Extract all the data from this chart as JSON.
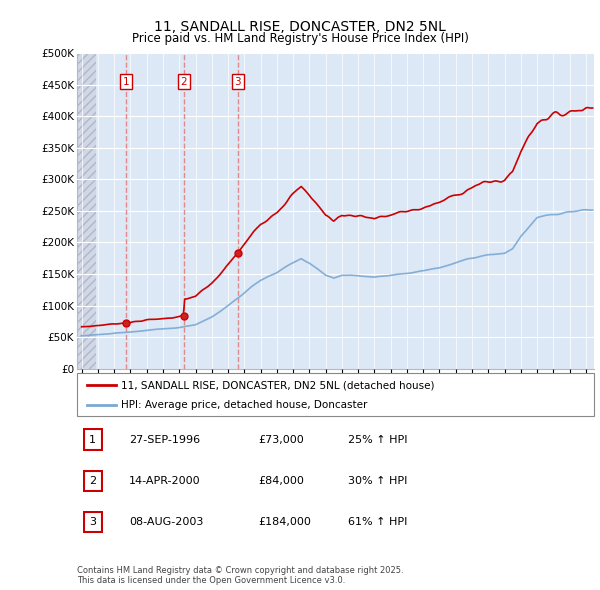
{
  "title": "11, SANDALL RISE, DONCASTER, DN2 5NL",
  "subtitle": "Price paid vs. HM Land Registry's House Price Index (HPI)",
  "ylabel_ticks": [
    "£0",
    "£50K",
    "£100K",
    "£150K",
    "£200K",
    "£250K",
    "£300K",
    "£350K",
    "£400K",
    "£450K",
    "£500K"
  ],
  "ytick_values": [
    0,
    50000,
    100000,
    150000,
    200000,
    250000,
    300000,
    350000,
    400000,
    450000,
    500000
  ],
  "ylim": [
    0,
    500000
  ],
  "xlim_start": 1993.7,
  "xlim_end": 2025.5,
  "sale_dates": [
    1996.74,
    2000.28,
    2003.6
  ],
  "sale_prices": [
    73000,
    84000,
    184000
  ],
  "sale_labels": [
    "1",
    "2",
    "3"
  ],
  "legend_line1": "11, SANDALL RISE, DONCASTER, DN2 5NL (detached house)",
  "legend_line2": "HPI: Average price, detached house, Doncaster",
  "table_rows": [
    [
      "1",
      "27-SEP-1996",
      "£73,000",
      "25% ↑ HPI"
    ],
    [
      "2",
      "14-APR-2000",
      "£84,000",
      "30% ↑ HPI"
    ],
    [
      "3",
      "08-AUG-2003",
      "£184,000",
      "61% ↑ HPI"
    ]
  ],
  "footnote": "Contains HM Land Registry data © Crown copyright and database right 2025.\nThis data is licensed under the Open Government Licence v3.0.",
  "red_color": "#cc0000",
  "blue_color": "#7aa8d2",
  "hatch_end": 1994.9,
  "blue_bg_start": 1994.9,
  "grid_color": "#b0b8cc",
  "bg_blue": "#dce8f5"
}
